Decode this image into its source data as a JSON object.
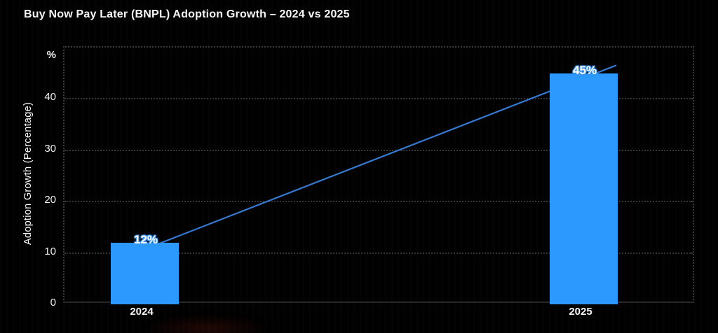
{
  "chart_data": {
    "type": "bar",
    "title": "Buy Now Pay Later (BNPL) Adoption Growth – 2024 vs 2025",
    "categories": [
      "2024",
      "2025"
    ],
    "values": [
      12,
      45
    ],
    "data_labels": [
      "12%",
      "45%"
    ],
    "ylabel": "Adoption Growth (Percentage)",
    "y_unit_label": "%",
    "yticks": [
      0,
      10,
      20,
      30,
      40
    ],
    "ylim": [
      0,
      50
    ],
    "grid": "dotted horizontal gridlines with dotted left/right/top frame, solid baseline",
    "legend": "none",
    "trendline": {
      "type": "straight",
      "connects": [
        "2024",
        "2025"
      ],
      "color": "#3579d0"
    },
    "colors": {
      "background": "#010101",
      "bar": "#2b99ff",
      "trendline": "#3579d0",
      "gridline": "#383838",
      "baseline": "#282828",
      "text": "#f5f5f5",
      "bar_label_fill": "#ffffff",
      "bar_label_outline": "#3d96f7"
    }
  }
}
